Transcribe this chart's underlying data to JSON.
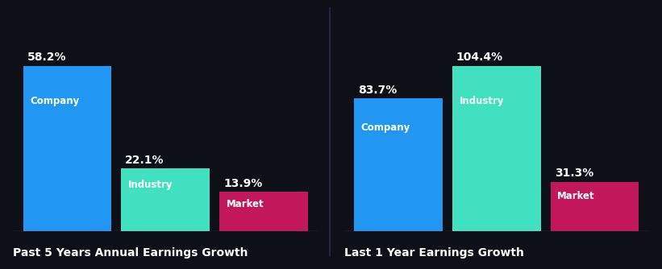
{
  "background_color": "#0d1117",
  "chart1_title": "Past 5 Years Annual Earnings Growth",
  "chart2_title": "Last 1 Year Earnings Growth",
  "groups": [
    "Company",
    "Industry",
    "Market"
  ],
  "chart1_values": [
    58.2,
    22.1,
    13.9
  ],
  "chart2_values": [
    83.7,
    104.4,
    31.3
  ],
  "colors": [
    "#2196F3",
    "#40E0C0",
    "#C2185B"
  ],
  "label_fontsize": 8.5,
  "value_fontsize": 10,
  "title_fontsize": 10,
  "text_color": "#ffffff",
  "title_color": "#ffffff",
  "bar_width": 0.9,
  "divider_color": "#3a3a5c",
  "separator_color": "#2a2a4a"
}
